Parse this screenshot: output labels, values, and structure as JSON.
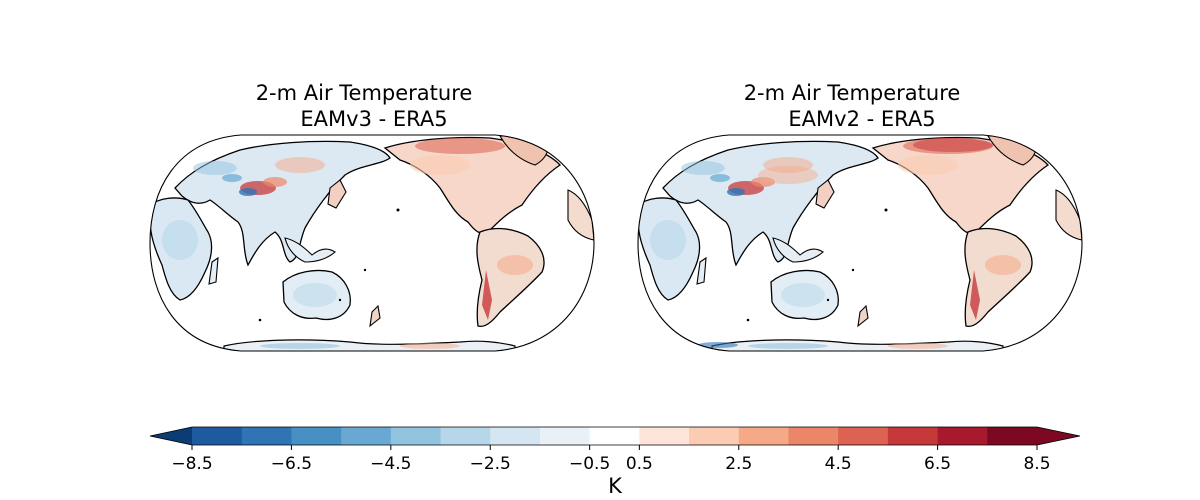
{
  "panels": [
    {
      "title_line1": "2-m Air Temperature",
      "title_line2": "EAMv3 - ERA5"
    },
    {
      "title_line1": "2-m Air Temperature",
      "title_line2": "EAMv2 - ERA5"
    }
  ],
  "colorbar": {
    "label": "K",
    "ticks": [
      "−8.5",
      "−6.5",
      "−4.5",
      "−2.5",
      "−0.5",
      "0.5",
      "2.5",
      "4.5",
      "6.5",
      "8.5"
    ],
    "tick_values": [
      -8.5,
      -6.5,
      -4.5,
      -2.5,
      -0.5,
      0.5,
      2.5,
      4.5,
      6.5,
      8.5
    ],
    "levels": [
      -9.5,
      -8.5,
      -7.5,
      -6.5,
      -5.5,
      -4.5,
      -3.5,
      -2.5,
      -1.5,
      -0.5,
      0.5,
      1.5,
      2.5,
      3.5,
      4.5,
      5.5,
      6.5,
      7.5,
      8.5,
      9.5
    ],
    "colors": [
      "#0b3c74",
      "#1c5b9f",
      "#2f74b5",
      "#4690c4",
      "#69a8d2",
      "#93c4df",
      "#b6d7e9",
      "#d3e6f1",
      "#e9f1f6",
      "#ffffff",
      "#fde5d9",
      "#fbcbb2",
      "#f6a987",
      "#ec8668",
      "#dc6251",
      "#c6393b",
      "#a7192d",
      "#7c0822"
    ],
    "colormap": "RdBu_r"
  }
}
